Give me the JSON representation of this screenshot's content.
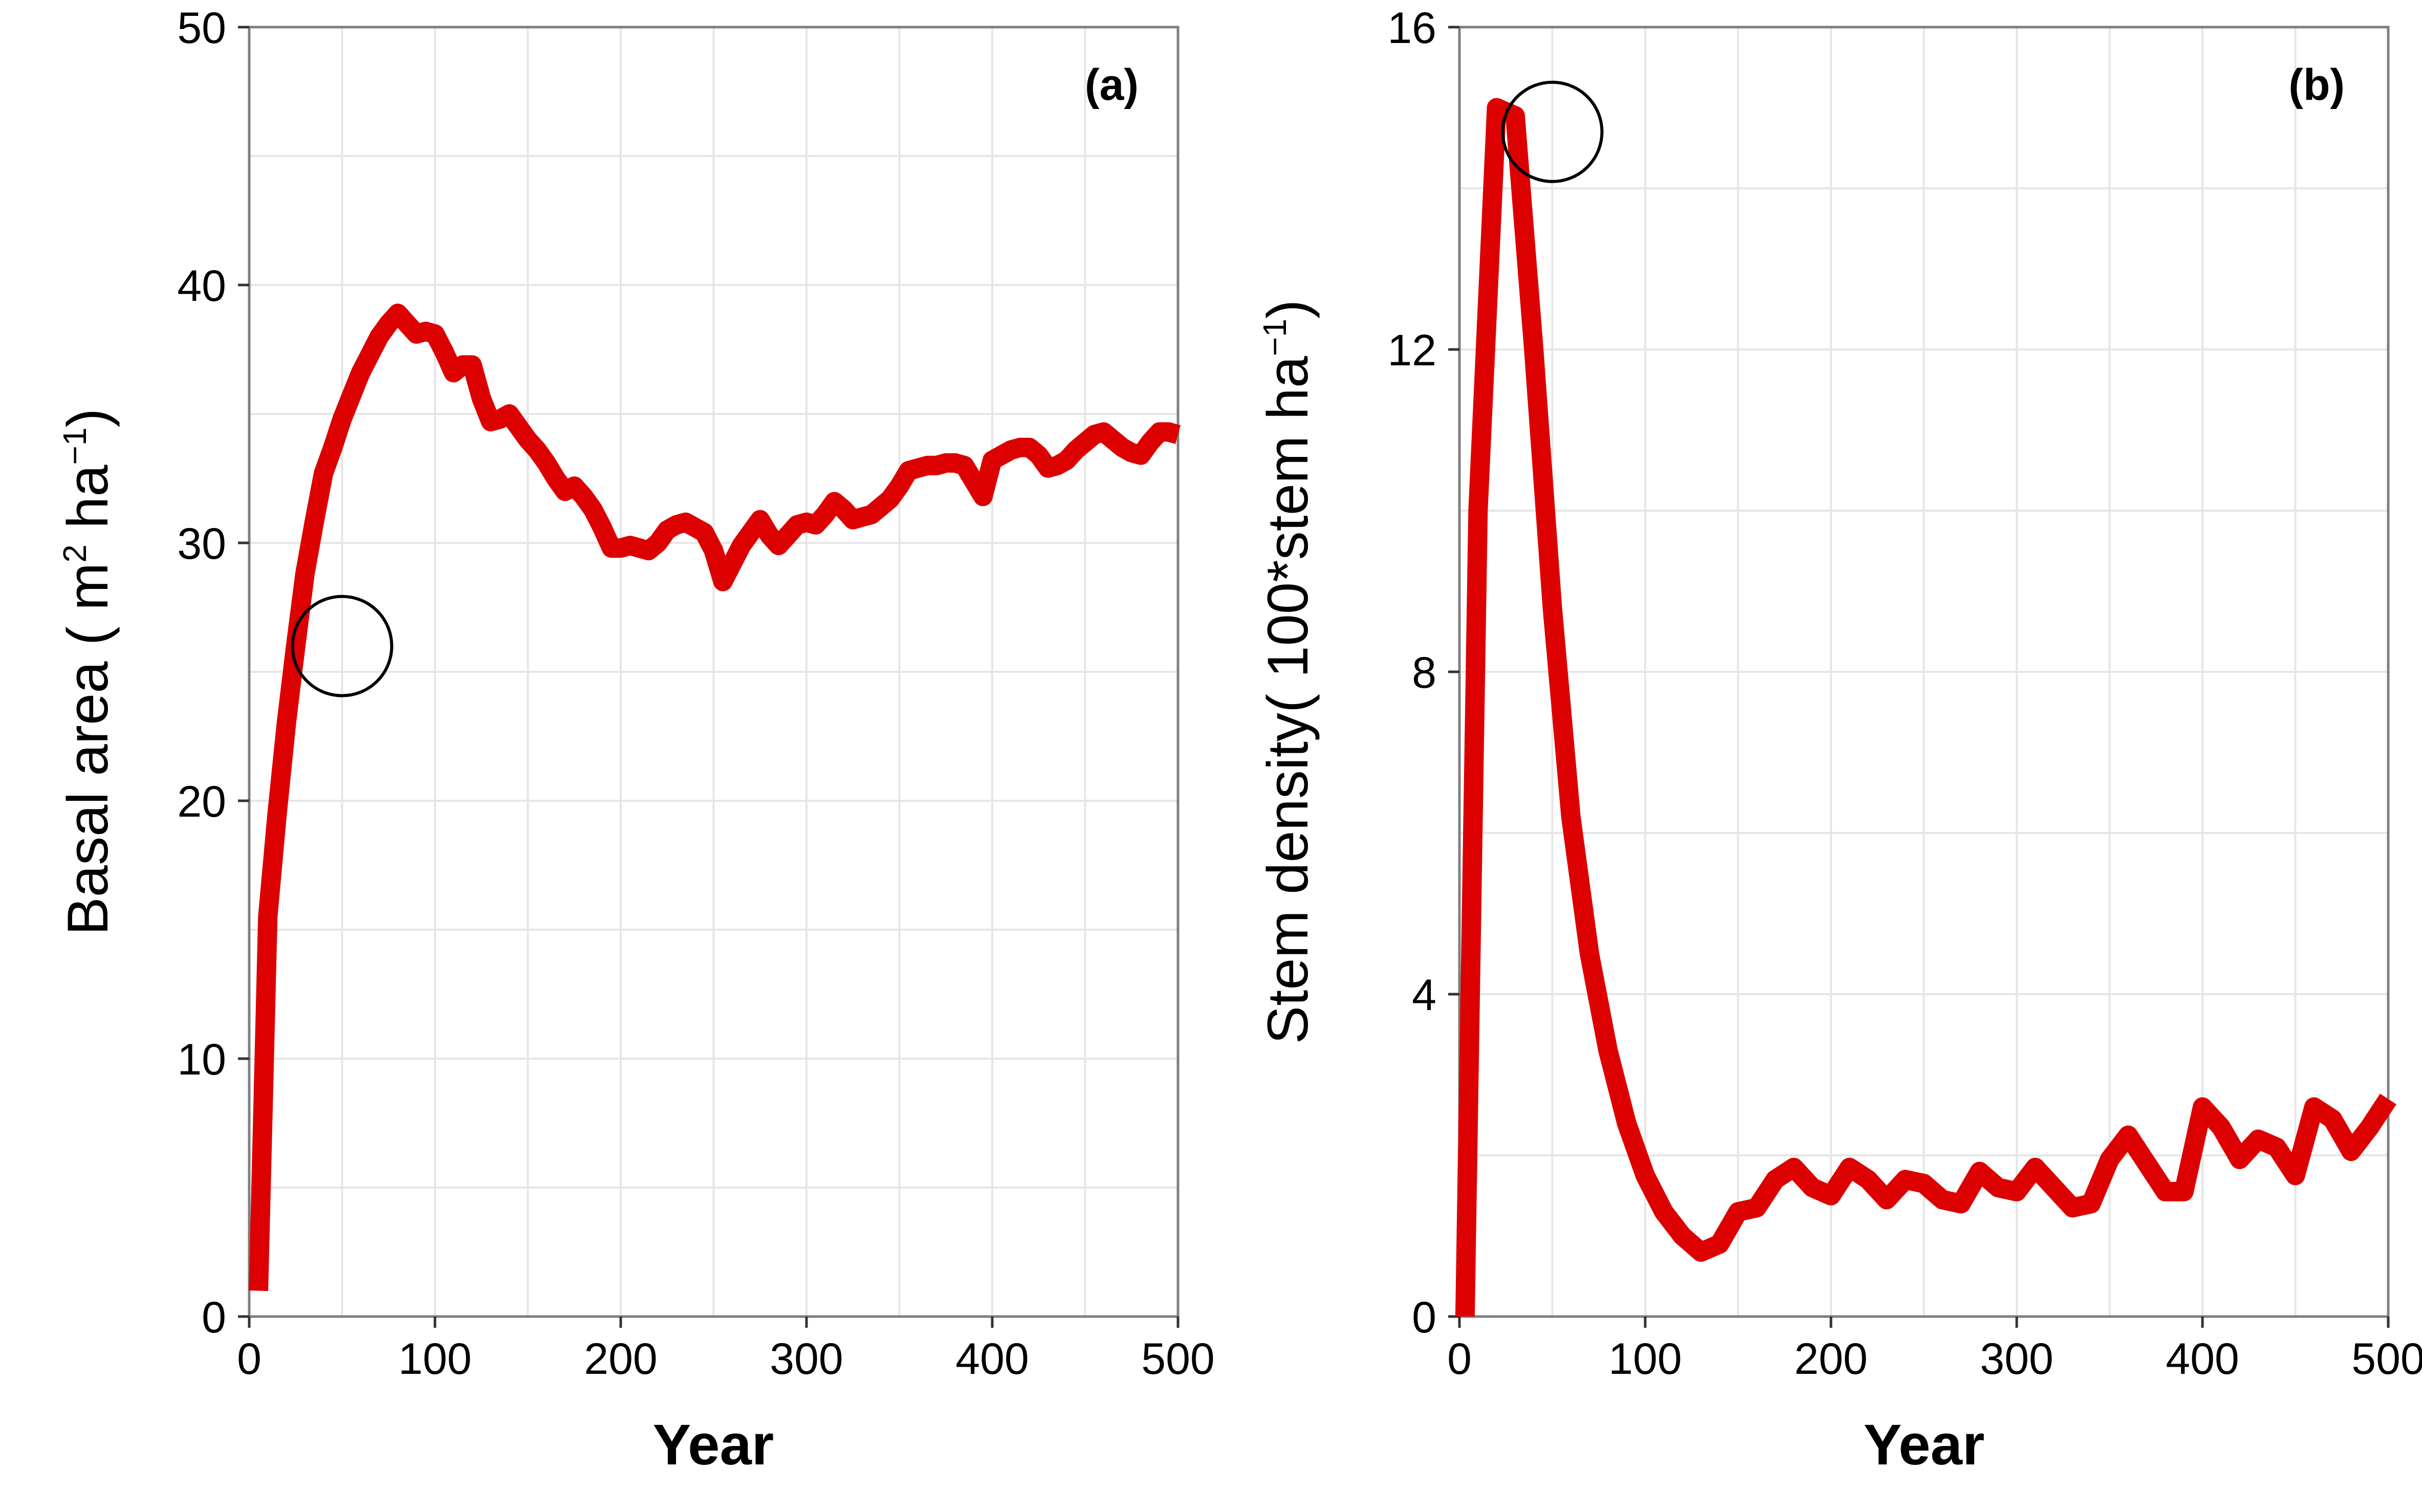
{
  "colors": {
    "series": "#dd0000",
    "grid": "#e6e6e6",
    "frame": "#7f7f7f"
  },
  "chart_data": [
    {
      "type": "line",
      "panel_label": "(a)",
      "xlabel": "Year",
      "ylabel": "Basal area ( m",
      "ylabel_unit_mid": " ha",
      "ylabel_sup1": "2",
      "ylabel_sup2": "−1",
      "ylabel_close": ")",
      "xlim": [
        0,
        500
      ],
      "ylim": [
        0,
        50
      ],
      "xticks": [
        0,
        100,
        200,
        300,
        400,
        500
      ],
      "xtick_labels": [
        "0",
        "100",
        "200",
        "300",
        "400",
        "500"
      ],
      "yticks": [
        0,
        10,
        20,
        30,
        40,
        50
      ],
      "ytick_labels": [
        "0",
        "10",
        "20",
        "30",
        "40",
        "50"
      ],
      "grid": true,
      "marker_circle": {
        "x": 50,
        "y": 26
      },
      "series": [
        {
          "x": [
            5,
            10,
            15,
            20,
            25,
            30,
            35,
            40,
            45,
            50,
            55,
            60,
            65,
            70,
            75,
            80,
            85,
            90,
            95,
            100,
            105,
            110,
            115,
            120,
            125,
            130,
            135,
            140,
            145,
            150,
            155,
            160,
            165,
            170,
            175,
            180,
            185,
            190,
            195,
            200,
            205,
            210,
            215,
            220,
            225,
            230,
            235,
            240,
            245,
            250,
            255,
            260,
            265,
            270,
            275,
            280,
            285,
            290,
            295,
            300,
            305,
            310,
            315,
            320,
            325,
            330,
            335,
            340,
            345,
            350,
            355,
            360,
            365,
            370,
            375,
            380,
            385,
            390,
            395,
            400,
            405,
            410,
            415,
            420,
            425,
            430,
            435,
            440,
            445,
            450,
            455,
            460,
            465,
            470,
            475,
            480,
            485,
            490,
            495,
            500
          ],
          "values": [
            1.0,
            15.5,
            19.5,
            23.0,
            26.0,
            28.8,
            30.8,
            32.7,
            33.7,
            34.8,
            35.7,
            36.6,
            37.3,
            38.0,
            38.5,
            38.9,
            38.5,
            38.1,
            38.2,
            38.1,
            37.4,
            36.6,
            36.9,
            36.9,
            35.6,
            34.7,
            34.8,
            35.0,
            34.5,
            34.0,
            33.6,
            33.1,
            32.5,
            32.0,
            32.2,
            31.8,
            31.3,
            30.6,
            29.8,
            29.8,
            29.9,
            29.8,
            29.7,
            30.0,
            30.5,
            30.7,
            30.8,
            30.6,
            30.4,
            29.7,
            28.5,
            29.2,
            29.9,
            30.4,
            30.9,
            30.3,
            29.9,
            30.3,
            30.7,
            30.8,
            30.7,
            31.1,
            31.6,
            31.3,
            30.9,
            31.0,
            31.1,
            31.4,
            31.7,
            32.2,
            32.8,
            32.9,
            33.0,
            33.0,
            33.1,
            33.1,
            33.0,
            32.4,
            31.8,
            33.2,
            33.4,
            33.6,
            33.7,
            33.7,
            33.4,
            32.9,
            33.0,
            33.2,
            33.6,
            33.9,
            34.2,
            34.3,
            34.0,
            33.7,
            33.5,
            33.4,
            33.9,
            34.3,
            34.3,
            34.2
          ]
        }
      ]
    },
    {
      "type": "line",
      "panel_label": "(b)",
      "xlabel": "Year",
      "ylabel": "Stem density( 100*stem ha",
      "ylabel_sup": "−1",
      "ylabel_close": ")",
      "xlim": [
        0,
        500
      ],
      "ylim": [
        0,
        16
      ],
      "xticks": [
        0,
        100,
        200,
        300,
        400,
        500
      ],
      "xtick_labels": [
        "0",
        "100",
        "200",
        "300",
        "400",
        "500"
      ],
      "yticks": [
        0,
        4,
        8,
        12,
        16
      ],
      "ytick_labels": [
        "0",
        "4",
        "8",
        "12",
        "16"
      ],
      "grid": true,
      "marker_circle": {
        "x": 50,
        "y": 14.7
      },
      "series": [
        {
          "x": [
            3,
            10,
            20,
            30,
            40,
            50,
            60,
            70,
            80,
            90,
            100,
            110,
            120,
            130,
            140,
            150,
            160,
            170,
            180,
            190,
            200,
            210,
            220,
            230,
            240,
            250,
            260,
            270,
            280,
            290,
            300,
            310,
            320,
            330,
            340,
            350,
            360,
            370,
            380,
            390,
            400,
            410,
            420,
            430,
            440,
            450,
            460,
            470,
            480,
            490,
            500
          ],
          "values": [
            0.0,
            10.0,
            15.0,
            14.9,
            12.0,
            8.8,
            6.2,
            4.5,
            3.3,
            2.4,
            1.75,
            1.3,
            1.0,
            0.8,
            0.9,
            1.3,
            1.35,
            1.7,
            1.85,
            1.6,
            1.5,
            1.85,
            1.7,
            1.45,
            1.7,
            1.65,
            1.45,
            1.4,
            1.8,
            1.6,
            1.55,
            1.85,
            1.6,
            1.35,
            1.4,
            1.95,
            2.25,
            1.9,
            1.55,
            1.55,
            2.6,
            2.35,
            1.95,
            2.2,
            2.1,
            1.75,
            2.6,
            2.45,
            2.05,
            2.35,
            2.7
          ]
        }
      ]
    }
  ]
}
